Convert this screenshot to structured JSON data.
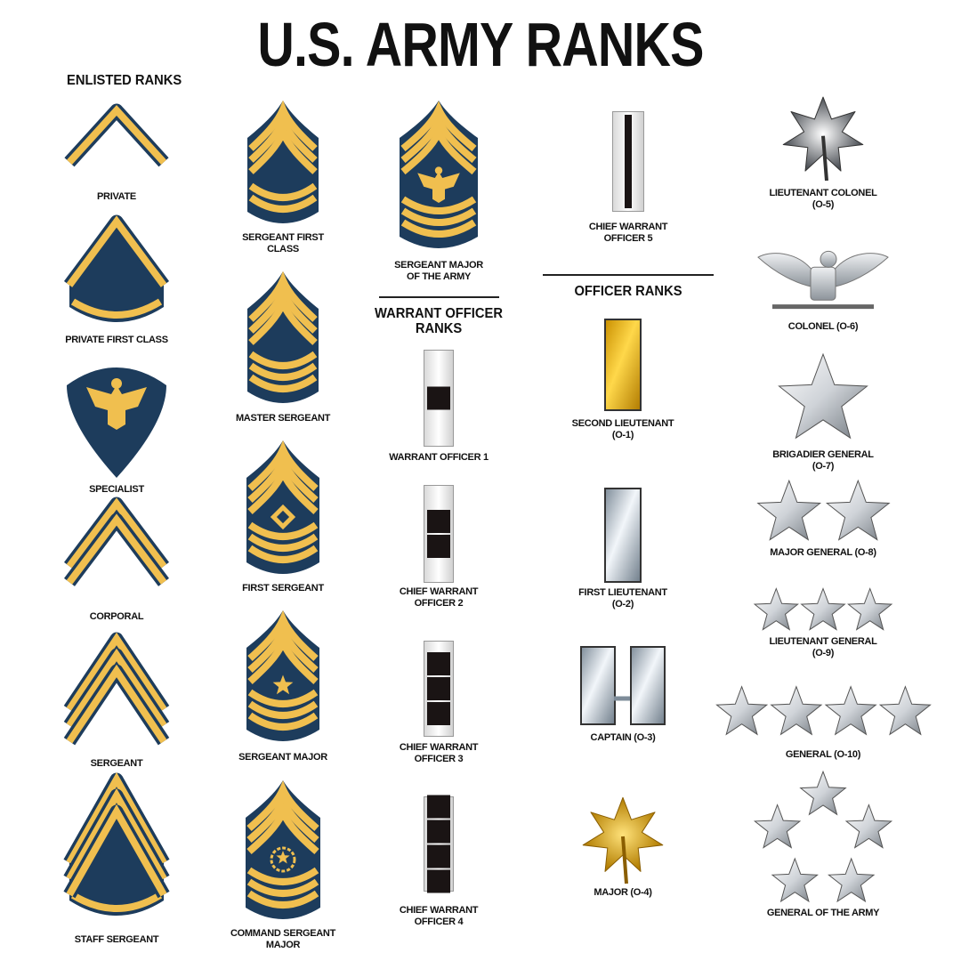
{
  "title": "U.S. ARMY RANKS",
  "sections": {
    "enlisted": "ENLISTED RANKS",
    "warrant": [
      "WARRANT OFFICER",
      "RANKS"
    ],
    "officer": "OFFICER RANKS"
  },
  "colors": {
    "navy": "#1d3c5c",
    "gold": "#f0bf4f",
    "silver": "#c9ced4",
    "black": "#1a1414"
  },
  "ranks": [
    {
      "label": [
        "PRIVATE"
      ],
      "insignia": {
        "type": "chevron",
        "chevrons": 1
      }
    },
    {
      "label": [
        "PRIVATE FIRST CLASS"
      ],
      "insignia": {
        "type": "chevron",
        "chevrons": 1,
        "rockers": 1
      }
    },
    {
      "label": [
        "SPECIALIST"
      ],
      "insignia": {
        "type": "specialist",
        "device": "eagle"
      }
    },
    {
      "label": [
        "CORPORAL"
      ],
      "insignia": {
        "type": "chevron",
        "chevrons": 2
      }
    },
    {
      "label": [
        "SERGEANT"
      ],
      "insignia": {
        "type": "chevron",
        "chevrons": 3
      }
    },
    {
      "label": [
        "STAFF SERGEANT"
      ],
      "insignia": {
        "type": "chevron",
        "chevrons": 3,
        "rockers": 1
      }
    },
    {
      "label": [
        "SERGEANT FIRST",
        "CLASS"
      ],
      "insignia": {
        "type": "shield",
        "chevrons": 3,
        "rockers": 2
      }
    },
    {
      "label": [
        "MASTER SERGEANT"
      ],
      "insignia": {
        "type": "shield",
        "chevrons": 3,
        "rockers": 3
      }
    },
    {
      "label": [
        "FIRST SERGEANT"
      ],
      "insignia": {
        "type": "shield",
        "chevrons": 3,
        "rockers": 3,
        "device": "diamond"
      }
    },
    {
      "label": [
        "SERGEANT MAJOR"
      ],
      "insignia": {
        "type": "shield",
        "chevrons": 3,
        "rockers": 3,
        "device": "star"
      }
    },
    {
      "label": [
        "COMMAND SERGEANT",
        "MAJOR"
      ],
      "insignia": {
        "type": "shield",
        "chevrons": 3,
        "rockers": 3,
        "device": "wreath-star"
      }
    },
    {
      "label": [
        "SERGEANT MAJOR",
        "OF THE ARMY"
      ],
      "insignia": {
        "type": "shield",
        "chevrons": 3,
        "rockers": 3,
        "device": "eagle"
      }
    },
    {
      "label": [
        "WARRANT OFFICER 1"
      ],
      "insignia": {
        "type": "warrant-bar",
        "squares": 1
      }
    },
    {
      "label": [
        "CHIEF WARRANT",
        "OFFICER 2"
      ],
      "insignia": {
        "type": "warrant-bar",
        "squares": 2
      }
    },
    {
      "label": [
        "CHIEF WARRANT",
        "OFFICER 3"
      ],
      "insignia": {
        "type": "warrant-bar",
        "squares": 3
      }
    },
    {
      "label": [
        "CHIEF WARRANT",
        "OFFICER 4"
      ],
      "insignia": {
        "type": "warrant-bar",
        "squares": 4
      }
    },
    {
      "label": [
        "CHIEF WARRANT",
        "OFFICER 5"
      ],
      "insignia": {
        "type": "warrant-line"
      }
    },
    {
      "label": [
        "SECOND LIEUTENANT",
        "(O-1)"
      ],
      "insignia": {
        "type": "bar",
        "metal": "gold",
        "count": 1
      }
    },
    {
      "label": [
        "FIRST LIEUTENANT",
        "(O-2)"
      ],
      "insignia": {
        "type": "bar",
        "metal": "silver",
        "count": 1
      }
    },
    {
      "label": [
        "CAPTAIN (O-3)"
      ],
      "insignia": {
        "type": "bar",
        "metal": "silver",
        "count": 2
      }
    },
    {
      "label": [
        "MAJOR (O-4)"
      ],
      "insignia": {
        "type": "oak-leaf",
        "metal": "gold"
      }
    },
    {
      "label": [
        "LIEUTENANT COLONEL",
        "(O-5)"
      ],
      "insignia": {
        "type": "oak-leaf",
        "metal": "silver"
      }
    },
    {
      "label": [
        "COLONEL (O-6)"
      ],
      "insignia": {
        "type": "eagle",
        "metal": "silver"
      }
    },
    {
      "label": [
        "BRIGADIER GENERAL",
        "(O-7)"
      ],
      "insignia": {
        "type": "stars",
        "count": 1
      }
    },
    {
      "label": [
        "MAJOR GENERAL (O-8)"
      ],
      "insignia": {
        "type": "stars",
        "count": 2
      }
    },
    {
      "label": [
        "LIEUTENANT GENERAL",
        "(O-9)"
      ],
      "insignia": {
        "type": "stars",
        "count": 3
      }
    },
    {
      "label": [
        "GENERAL (O-10)"
      ],
      "insignia": {
        "type": "stars",
        "count": 4
      }
    },
    {
      "label": [
        "GENERAL OF THE ARMY"
      ],
      "insignia": {
        "type": "stars",
        "count": 5,
        "arrangement": "pentagon"
      }
    }
  ]
}
